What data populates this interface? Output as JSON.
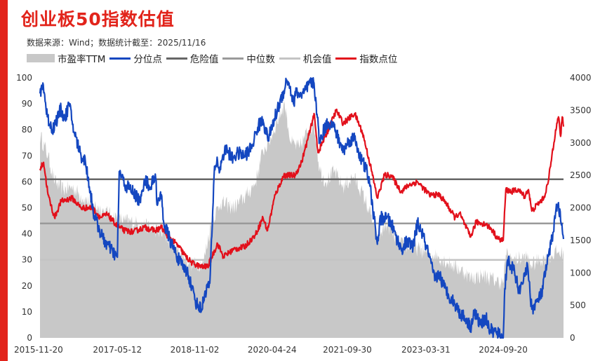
{
  "header": {
    "title": "创业板50指数估值",
    "subtitle": "数据来源：Wind；数据统计截至：2025/11/16"
  },
  "legend": [
    {
      "label": "市盈率TTM",
      "kind": "area",
      "color": "#c8c8c8"
    },
    {
      "label": "分位点",
      "kind": "line",
      "color": "#1447c0"
    },
    {
      "label": "危险值",
      "kind": "line",
      "color": "#666666"
    },
    {
      "label": "中位数",
      "kind": "line",
      "color": "#9a9a9a"
    },
    {
      "label": "机会值",
      "kind": "line",
      "color": "#c4c4c4"
    },
    {
      "label": "指数点位",
      "kind": "line",
      "color": "#e2101b"
    }
  ],
  "chart_data": {
    "type": "line",
    "title": "创业板50指数估值",
    "x_tick_labels": [
      "2015-11-20",
      "2017-05-12",
      "2018-11-02",
      "2020-04-24",
      "2021-09-30",
      "2023-03-31",
      "2024-09-20"
    ],
    "x_range": [
      "2015-11-20",
      "2025-11-14"
    ],
    "y_left": {
      "ticks": [
        0,
        10,
        20,
        30,
        40,
        50,
        60,
        70,
        80,
        90,
        100
      ],
      "range": [
        0,
        100
      ]
    },
    "y_right": {
      "ticks": [
        0,
        500,
        1000,
        1500,
        2000,
        2500,
        3000,
        3500,
        4000
      ],
      "range": [
        0,
        4000
      ]
    },
    "reference_lines_left_axis": {
      "危险值": 61,
      "中位数": 44,
      "机会值": 30
    },
    "series": [
      {
        "name": "市盈率TTM",
        "kind": "area",
        "axis": "left",
        "points": [
          [
            "2015-11-20",
            78
          ],
          [
            "2016-01-15",
            70
          ],
          [
            "2016-03-01",
            60
          ],
          [
            "2016-05-01",
            57
          ],
          [
            "2016-07-01",
            58
          ],
          [
            "2016-10-01",
            53
          ],
          [
            "2017-01-01",
            50
          ],
          [
            "2017-04-01",
            47
          ],
          [
            "2017-07-01",
            45
          ],
          [
            "2017-10-01",
            44
          ],
          [
            "2018-01-15",
            42
          ],
          [
            "2018-04-01",
            40
          ],
          [
            "2018-07-01",
            34
          ],
          [
            "2018-10-15",
            28
          ],
          [
            "2019-01-01",
            29
          ],
          [
            "2019-03-01",
            45
          ],
          [
            "2019-05-01",
            52
          ],
          [
            "2019-08-01",
            50
          ],
          [
            "2019-11-01",
            55
          ],
          [
            "2020-01-01",
            60
          ],
          [
            "2020-02-20",
            72
          ],
          [
            "2020-04-01",
            75
          ],
          [
            "2020-05-20",
            82
          ],
          [
            "2020-07-20",
            90
          ],
          [
            "2020-09-01",
            75
          ],
          [
            "2020-11-01",
            73
          ],
          [
            "2020-12-31",
            80
          ],
          [
            "2021-02-10",
            82
          ],
          [
            "2021-03-20",
            65
          ],
          [
            "2021-05-01",
            60
          ],
          [
            "2021-07-01",
            64
          ],
          [
            "2021-09-01",
            58
          ],
          [
            "2021-11-10",
            62
          ],
          [
            "2022-01-01",
            57
          ],
          [
            "2022-03-01",
            49
          ],
          [
            "2022-04-27",
            38
          ],
          [
            "2022-07-01",
            44
          ],
          [
            "2022-10-01",
            36
          ],
          [
            "2023-01-01",
            35
          ],
          [
            "2023-04-01",
            33
          ],
          [
            "2023-07-01",
            31
          ],
          [
            "2023-10-01",
            28
          ],
          [
            "2024-01-01",
            25
          ],
          [
            "2024-02-05",
            23
          ],
          [
            "2024-05-01",
            24
          ],
          [
            "2024-08-01",
            22
          ],
          [
            "2024-09-20",
            21
          ],
          [
            "2024-10-08",
            32
          ],
          [
            "2024-12-01",
            30
          ],
          [
            "2025-03-01",
            31
          ],
          [
            "2025-04-07",
            28
          ],
          [
            "2025-06-01",
            30
          ],
          [
            "2025-08-01",
            31
          ],
          [
            "2025-10-01",
            33
          ],
          [
            "2025-11-14",
            32
          ]
        ]
      },
      {
        "name": "分位点",
        "kind": "line",
        "axis": "left",
        "color": "#1447c0",
        "points": [
          [
            "2015-11-20",
            94
          ],
          [
            "2015-12-10",
            98
          ],
          [
            "2016-01-10",
            85
          ],
          [
            "2016-02-15",
            80
          ],
          [
            "2016-04-15",
            88
          ],
          [
            "2016-05-10",
            84
          ],
          [
            "2016-06-10",
            90
          ],
          [
            "2016-07-15",
            79
          ],
          [
            "2016-09-01",
            70
          ],
          [
            "2016-10-01",
            68
          ],
          [
            "2016-12-01",
            47
          ],
          [
            "2017-02-01",
            38
          ],
          [
            "2017-04-10",
            33
          ],
          [
            "2017-05-12",
            31
          ],
          [
            "2017-05-25",
            64
          ],
          [
            "2017-07-01",
            59
          ],
          [
            "2017-09-01",
            56
          ],
          [
            "2017-10-20",
            52
          ],
          [
            "2017-11-15",
            61
          ],
          [
            "2018-01-01",
            58
          ],
          [
            "2018-01-31",
            63
          ],
          [
            "2018-02-15",
            51
          ],
          [
            "2018-03-15",
            55
          ],
          [
            "2018-04-01",
            44
          ],
          [
            "2018-06-01",
            35
          ],
          [
            "2018-08-01",
            28
          ],
          [
            "2018-09-15",
            25
          ],
          [
            "2018-10-15",
            19
          ],
          [
            "2018-11-15",
            13
          ],
          [
            "2018-12-20",
            11
          ],
          [
            "2019-01-15",
            18
          ],
          [
            "2019-02-15",
            21
          ],
          [
            "2019-03-01",
            39
          ],
          [
            "2019-03-20",
            66
          ],
          [
            "2019-04-10",
            68
          ],
          [
            "2019-04-25",
            64
          ],
          [
            "2019-05-15",
            70
          ],
          [
            "2019-06-15",
            73
          ],
          [
            "2019-07-15",
            69
          ],
          [
            "2019-09-01",
            71
          ],
          [
            "2019-10-15",
            70
          ],
          [
            "2019-12-01",
            73
          ],
          [
            "2020-01-15",
            81
          ],
          [
            "2020-02-20",
            84
          ],
          [
            "2020-03-23",
            77
          ],
          [
            "2020-04-15",
            79
          ],
          [
            "2020-05-20",
            86
          ],
          [
            "2020-07-15",
            95
          ],
          [
            "2020-08-01",
            99
          ],
          [
            "2020-08-20",
            98
          ],
          [
            "2020-09-20",
            90
          ],
          [
            "2020-10-10",
            95
          ],
          [
            "2020-11-10",
            93
          ],
          [
            "2020-12-01",
            94
          ],
          [
            "2021-01-15",
            98
          ],
          [
            "2021-02-10",
            98
          ],
          [
            "2021-02-25",
            90
          ],
          [
            "2021-03-20",
            75
          ],
          [
            "2021-04-20",
            80
          ],
          [
            "2021-05-20",
            83
          ],
          [
            "2021-06-30",
            81
          ],
          [
            "2021-08-01",
            76
          ],
          [
            "2021-09-01",
            72
          ],
          [
            "2021-10-15",
            76
          ],
          [
            "2021-11-20",
            77
          ],
          [
            "2022-01-01",
            69
          ],
          [
            "2022-02-15",
            64
          ],
          [
            "2022-03-15",
            55
          ],
          [
            "2022-04-27",
            36
          ],
          [
            "2022-05-20",
            46
          ],
          [
            "2022-07-01",
            46
          ],
          [
            "2022-08-01",
            44
          ],
          [
            "2022-10-10",
            34
          ],
          [
            "2022-11-20",
            37
          ],
          [
            "2023-01-01",
            35
          ],
          [
            "2023-02-01",
            44
          ],
          [
            "2023-03-01",
            41
          ],
          [
            "2023-04-25",
            31
          ],
          [
            "2023-06-01",
            22
          ],
          [
            "2023-07-01",
            25
          ],
          [
            "2023-08-01",
            20
          ],
          [
            "2023-09-01",
            17
          ],
          [
            "2023-10-20",
            13
          ],
          [
            "2023-12-01",
            9
          ],
          [
            "2024-01-10",
            7
          ],
          [
            "2024-02-05",
            4
          ],
          [
            "2024-03-01",
            10
          ],
          [
            "2024-04-15",
            5
          ],
          [
            "2024-05-20",
            8
          ],
          [
            "2024-06-20",
            3
          ],
          [
            "2024-08-01",
            2
          ],
          [
            "2024-09-20",
            0
          ],
          [
            "2024-10-01",
            19
          ],
          [
            "2024-10-20",
            30
          ],
          [
            "2024-12-01",
            26
          ],
          [
            "2025-01-15",
            17
          ],
          [
            "2025-02-15",
            25
          ],
          [
            "2025-03-10",
            27
          ],
          [
            "2025-04-07",
            11
          ],
          [
            "2025-05-15",
            14
          ],
          [
            "2025-06-15",
            17
          ],
          [
            "2025-07-20",
            28
          ],
          [
            "2025-08-20",
            36
          ],
          [
            "2025-09-20",
            48
          ],
          [
            "2025-10-10",
            52
          ],
          [
            "2025-10-25",
            45
          ],
          [
            "2025-11-14",
            38
          ]
        ]
      },
      {
        "name": "指数点位",
        "kind": "line",
        "axis": "right",
        "color": "#e2101b",
        "points": [
          [
            "2015-11-20",
            2600
          ],
          [
            "2015-12-15",
            2700
          ],
          [
            "2016-01-15",
            2200
          ],
          [
            "2016-02-29",
            1850
          ],
          [
            "2016-04-15",
            2100
          ],
          [
            "2016-07-01",
            2150
          ],
          [
            "2016-09-01",
            2000
          ],
          [
            "2016-11-15",
            2000
          ],
          [
            "2017-01-15",
            1850
          ],
          [
            "2017-03-01",
            1900
          ],
          [
            "2017-05-12",
            1720
          ],
          [
            "2017-07-01",
            1650
          ],
          [
            "2017-09-01",
            1630
          ],
          [
            "2017-11-15",
            1700
          ],
          [
            "2018-01-31",
            1650
          ],
          [
            "2018-03-15",
            1700
          ],
          [
            "2018-04-15",
            1600
          ],
          [
            "2018-06-01",
            1500
          ],
          [
            "2018-07-15",
            1400
          ],
          [
            "2018-09-01",
            1250
          ],
          [
            "2018-10-15",
            1150
          ],
          [
            "2018-12-20",
            1090
          ],
          [
            "2019-02-01",
            1100
          ],
          [
            "2019-04-10",
            1450
          ],
          [
            "2019-05-20",
            1250
          ],
          [
            "2019-08-01",
            1360
          ],
          [
            "2019-10-15",
            1400
          ],
          [
            "2019-12-31",
            1590
          ],
          [
            "2020-02-20",
            1850
          ],
          [
            "2020-03-23",
            1650
          ],
          [
            "2020-05-15",
            2200
          ],
          [
            "2020-07-15",
            2500
          ],
          [
            "2020-09-30",
            2500
          ],
          [
            "2020-11-15",
            2700
          ],
          [
            "2021-01-15",
            3200
          ],
          [
            "2021-02-10",
            3450
          ],
          [
            "2021-03-10",
            2850
          ],
          [
            "2021-05-20",
            3200
          ],
          [
            "2021-07-15",
            3500
          ],
          [
            "2021-09-01",
            3300
          ],
          [
            "2021-11-20",
            3450
          ],
          [
            "2022-01-15",
            3150
          ],
          [
            "2022-03-15",
            2600
          ],
          [
            "2022-04-27",
            2150
          ],
          [
            "2022-06-15",
            2500
          ],
          [
            "2022-08-01",
            2500
          ],
          [
            "2022-10-10",
            2250
          ],
          [
            "2022-12-01",
            2350
          ],
          [
            "2023-02-01",
            2400
          ],
          [
            "2023-04-25",
            2200
          ],
          [
            "2023-07-01",
            2200
          ],
          [
            "2023-08-10",
            2100
          ],
          [
            "2023-10-20",
            1850
          ],
          [
            "2023-11-20",
            1920
          ],
          [
            "2024-02-05",
            1550
          ],
          [
            "2024-03-15",
            1780
          ],
          [
            "2024-05-20",
            1750
          ],
          [
            "2024-07-01",
            1670
          ],
          [
            "2024-08-15",
            1520
          ],
          [
            "2024-09-20",
            1500
          ],
          [
            "2024-10-08",
            2280
          ],
          [
            "2024-11-15",
            2250
          ],
          [
            "2024-12-31",
            2280
          ],
          [
            "2025-02-15",
            2180
          ],
          [
            "2025-03-15",
            2280
          ],
          [
            "2025-04-07",
            1950
          ],
          [
            "2025-05-15",
            2050
          ],
          [
            "2025-06-30",
            2150
          ],
          [
            "2025-07-31",
            2400
          ],
          [
            "2025-08-25",
            2800
          ],
          [
            "2025-09-20",
            3200
          ],
          [
            "2025-10-10",
            3400
          ],
          [
            "2025-10-25",
            3100
          ],
          [
            "2025-11-05",
            3400
          ],
          [
            "2025-11-14",
            3250
          ]
        ]
      }
    ]
  }
}
